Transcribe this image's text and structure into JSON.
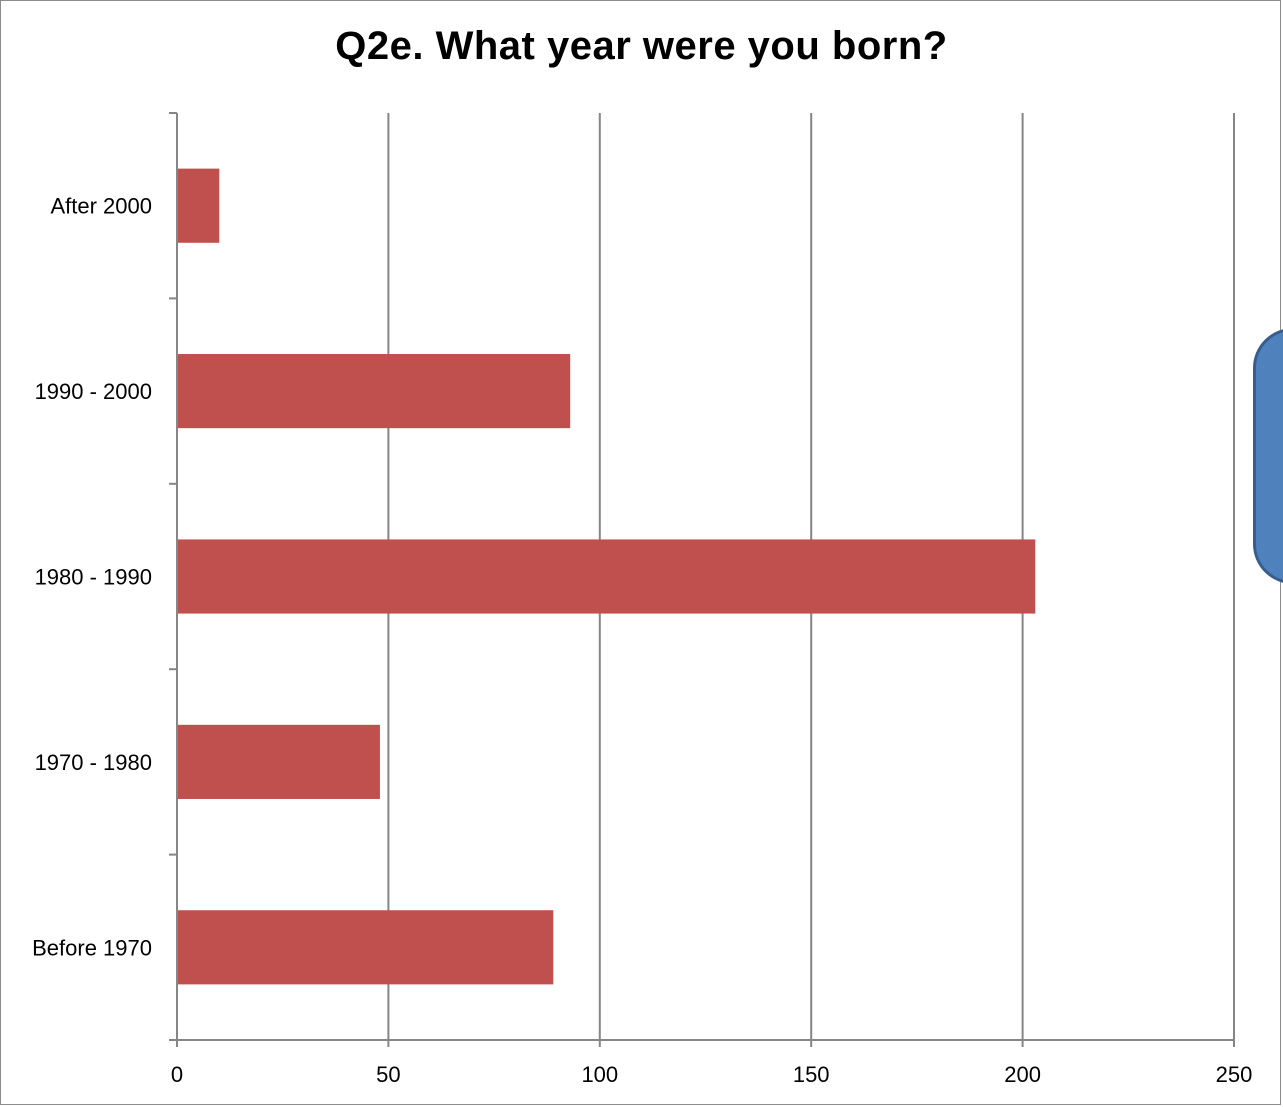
{
  "chart_data": {
    "type": "bar",
    "orientation": "horizontal",
    "title": "Q2e. What year were you born?",
    "xlabel": "",
    "ylabel": "",
    "categories": [
      "After 2000",
      "1990 - 2000",
      "1980 - 1990",
      "1970 - 1980",
      "Before 1970"
    ],
    "values": [
      10,
      93,
      203,
      48,
      89
    ],
    "xlim": [
      0,
      250
    ],
    "xticks": [
      "0",
      "50",
      "100",
      "150",
      "200",
      "250"
    ],
    "grid": "vertical",
    "legend": "none",
    "bar_color": "#c0504d",
    "grid_color": "#868686"
  },
  "side_shape_color": "#4f81bd"
}
